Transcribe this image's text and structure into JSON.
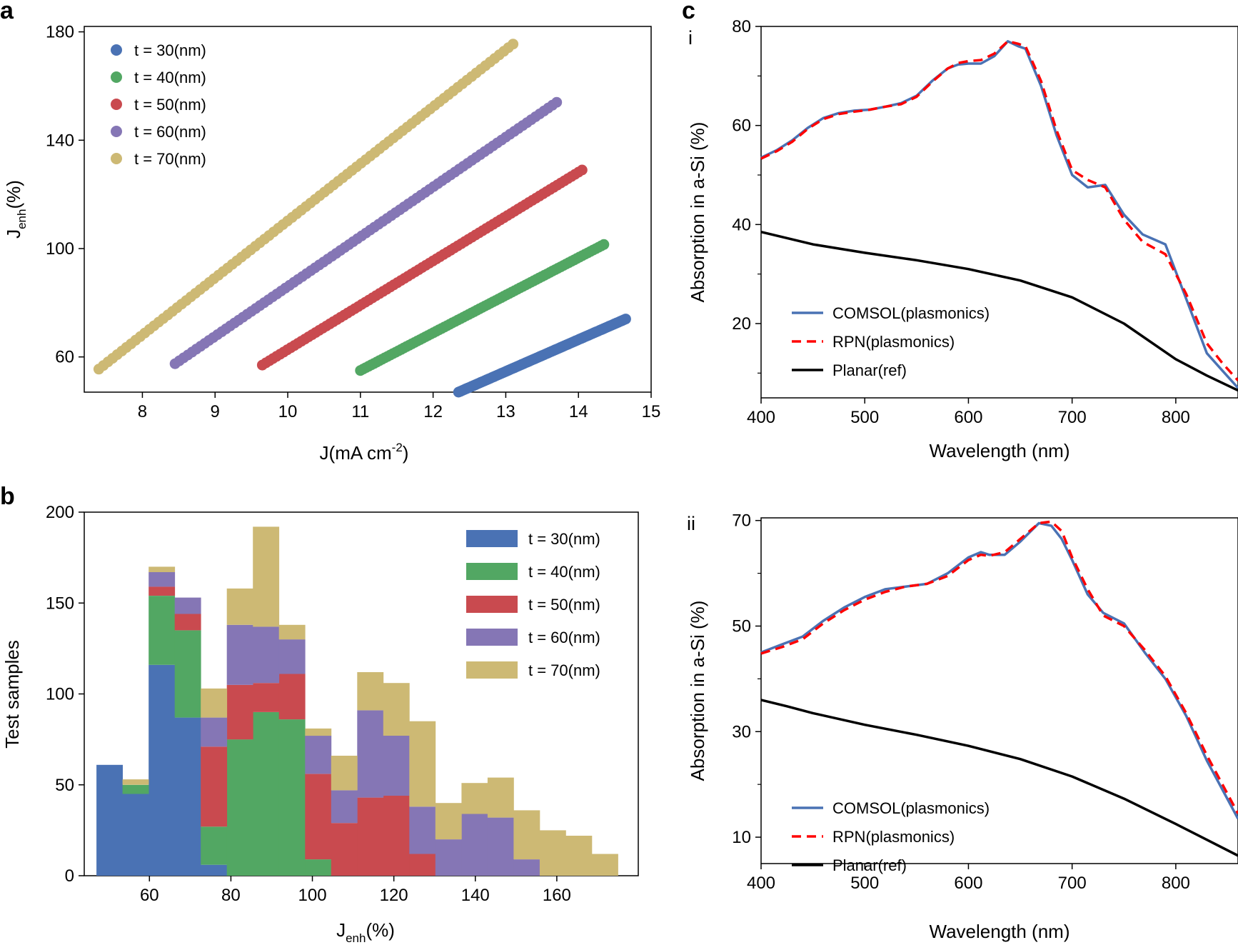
{
  "panel_labels": {
    "a": "a",
    "b": "b",
    "c": "c",
    "ci": "i",
    "cii": "ii"
  },
  "colors": {
    "t30": "#4a72b4",
    "t40": "#52a763",
    "t50": "#c94a4f",
    "t60": "#8576b5",
    "t70": "#cdb974",
    "comsol": "#4a72b4",
    "rpn": "#ff0000",
    "planar": "#000000"
  },
  "chart_data": [
    {
      "id": "a",
      "type": "scatter",
      "title": "",
      "xlabel": "J(mA cm",
      "xlabel_sup": "-2",
      "xlabel_close": ")",
      "ylabel": "J",
      "ylabel_sub": "enh",
      "ylabel_unit": "(%)",
      "xlim": [
        7.2,
        15
      ],
      "ylim": [
        47,
        182
      ],
      "xticks": [
        8,
        9,
        10,
        11,
        12,
        13,
        14,
        15
      ],
      "yticks": [
        60,
        100,
        140,
        180
      ],
      "legend_position": "top-left",
      "series": [
        {
          "name": "t = 30(nm)",
          "color_key": "t30",
          "x": [
            12.35,
            14.65
          ],
          "y": [
            47,
            74
          ]
        },
        {
          "name": "t = 40(nm)",
          "color_key": "t40",
          "x": [
            11.0,
            14.35
          ],
          "y": [
            55,
            101.5
          ]
        },
        {
          "name": "t = 50(nm)",
          "color_key": "t50",
          "x": [
            9.65,
            14.05
          ],
          "y": [
            57,
            129
          ]
        },
        {
          "name": "t = 60(nm)",
          "color_key": "t60",
          "x": [
            8.45,
            13.7
          ],
          "y": [
            57.5,
            154
          ]
        },
        {
          "name": "t = 70(nm)",
          "color_key": "t70",
          "x": [
            7.4,
            13.1
          ],
          "y": [
            55.5,
            175.5
          ]
        }
      ]
    },
    {
      "id": "b",
      "type": "bar",
      "stacked": true,
      "xlabel": "J",
      "xlabel_sub": "enh",
      "xlabel_unit": "(%)",
      "ylabel": "Test samples",
      "xlim": [
        44,
        180
      ],
      "ylim": [
        0,
        200
      ],
      "xticks": [
        60,
        80,
        100,
        120,
        140,
        160
      ],
      "yticks": [
        0,
        50,
        100,
        150,
        200
      ],
      "legend_position": "top-right",
      "bin_edges": [
        47,
        53.4,
        59.8,
        66.2,
        72.6,
        79,
        85.4,
        91.8,
        98.2,
        104.6,
        111,
        117.4,
        123.8,
        130.2,
        136.6,
        143,
        149.4,
        155.8,
        162.2,
        168.6,
        175
      ],
      "series": [
        {
          "name": "t = 30(nm)",
          "color_key": "t30",
          "values": [
            61,
            45,
            116,
            87,
            6,
            0,
            0,
            0,
            0,
            0,
            0,
            0,
            0,
            0,
            0,
            0,
            0,
            0,
            0,
            0
          ]
        },
        {
          "name": "t = 40(nm)",
          "color_key": "t40",
          "values": [
            0,
            5,
            38,
            48,
            21,
            75,
            90,
            86,
            9,
            0,
            0,
            0,
            0,
            0,
            0,
            0,
            0,
            0,
            0,
            0
          ]
        },
        {
          "name": "t = 50(nm)",
          "color_key": "t50",
          "values": [
            0,
            0,
            5,
            9,
            44,
            30,
            16,
            25,
            47,
            29,
            43,
            44,
            12,
            0,
            0,
            0,
            0,
            0,
            0,
            0
          ]
        },
        {
          "name": "t = 60(nm)",
          "color_key": "t60",
          "values": [
            0,
            0,
            8,
            9,
            16,
            33,
            31,
            19,
            21,
            18,
            48,
            33,
            26,
            20,
            34,
            32,
            9,
            0,
            0,
            0
          ]
        },
        {
          "name": "t = 70(nm)",
          "color_key": "t70",
          "values": [
            0,
            3,
            3,
            0,
            16,
            20,
            55,
            8,
            4,
            19,
            21,
            29,
            47,
            20,
            17,
            22,
            27,
            25,
            22,
            12
          ]
        }
      ]
    },
    {
      "id": "ci",
      "type": "line",
      "xlabel": "Wavelength (nm)",
      "ylabel": "Absorption in a-Si (%)",
      "xlim": [
        400,
        860
      ],
      "ylim": [
        5,
        80
      ],
      "xticks": [
        400,
        500,
        600,
        700,
        800
      ],
      "yticks": [
        20,
        40,
        60,
        80
      ],
      "legend_position": "bottom-left",
      "series": [
        {
          "name": "COMSOL(plasmonics)",
          "color_key": "comsol",
          "dash": "solid",
          "x": [
            400,
            415,
            430,
            445,
            460,
            475,
            490,
            505,
            520,
            535,
            550,
            565,
            580,
            590,
            600,
            612,
            625,
            638,
            648,
            655,
            670,
            685,
            700,
            715,
            732,
            750,
            768,
            790,
            810,
            830,
            845,
            860
          ],
          "y": [
            53.5,
            55,
            57,
            59.5,
            61.5,
            62.5,
            63,
            63.2,
            63.8,
            64.5,
            66,
            69,
            71.5,
            72.3,
            72.5,
            72.5,
            74,
            77,
            76,
            75.5,
            68,
            58,
            50,
            47.5,
            48,
            42,
            38,
            36,
            25,
            14,
            10.5,
            7
          ]
        },
        {
          "name": "RPN(plasmonics)",
          "color_key": "rpn",
          "dash": "dashed",
          "x": [
            400,
            415,
            430,
            445,
            460,
            475,
            490,
            505,
            520,
            535,
            550,
            565,
            580,
            590,
            600,
            612,
            625,
            638,
            648,
            655,
            670,
            685,
            700,
            715,
            732,
            750,
            768,
            790,
            810,
            830,
            845,
            860
          ],
          "y": [
            53.3,
            54.8,
            56.7,
            59.3,
            61.3,
            62.3,
            62.8,
            63.2,
            63.8,
            64.3,
            65.8,
            68.8,
            71.5,
            72.6,
            73,
            73.2,
            74.5,
            77,
            76.5,
            76,
            69,
            59,
            51,
            49,
            47.5,
            41,
            36.5,
            34,
            26,
            16,
            12,
            8.5
          ]
        },
        {
          "name": "Planar(ref)",
          "color_key": "planar",
          "dash": "solid",
          "x": [
            400,
            450,
            500,
            550,
            600,
            650,
            700,
            750,
            800,
            830,
            860
          ],
          "y": [
            38.5,
            36,
            34.3,
            32.8,
            31,
            28.7,
            25.3,
            20,
            12.8,
            9.5,
            6.5
          ]
        }
      ]
    },
    {
      "id": "cii",
      "type": "line",
      "xlabel": "Wavelength (nm)",
      "ylabel": "Absorption in a-Si (%)",
      "xlim": [
        400,
        860
      ],
      "ylim": [
        5,
        70.5
      ],
      "xticks": [
        400,
        500,
        600,
        700,
        800
      ],
      "yticks": [
        10,
        30,
        50,
        70
      ],
      "legend_position": "bottom-left",
      "series": [
        {
          "name": "COMSOL(plasmonics)",
          "color_key": "comsol",
          "dash": "solid",
          "x": [
            400,
            420,
            440,
            460,
            480,
            500,
            520,
            540,
            560,
            580,
            600,
            612,
            620,
            635,
            650,
            668,
            680,
            690,
            700,
            715,
            730,
            750,
            770,
            790,
            810,
            830,
            845,
            860
          ],
          "y": [
            45,
            46.5,
            48,
            51,
            53.5,
            55.5,
            57,
            57.5,
            58,
            60,
            63,
            64,
            63.5,
            63.5,
            66,
            69.5,
            69,
            66.5,
            62.5,
            56,
            52.5,
            50.5,
            45,
            40,
            33,
            24.5,
            19,
            13.5
          ]
        },
        {
          "name": "RPN(plasmonics)",
          "color_key": "rpn",
          "dash": "dashed",
          "x": [
            400,
            420,
            440,
            460,
            480,
            500,
            520,
            540,
            560,
            580,
            600,
            612,
            620,
            635,
            650,
            668,
            680,
            690,
            700,
            715,
            730,
            750,
            770,
            790,
            810,
            830,
            845,
            860
          ],
          "y": [
            44.8,
            46,
            47.5,
            50.5,
            53,
            55,
            56.5,
            57.5,
            58,
            59.5,
            62.5,
            63.5,
            63.3,
            64,
            66.5,
            69.5,
            69.8,
            68,
            63,
            57,
            52,
            50,
            45.5,
            40.5,
            33.5,
            25.5,
            20,
            14.5
          ]
        },
        {
          "name": "Planar(ref)",
          "color_key": "planar",
          "dash": "solid",
          "x": [
            400,
            425,
            450,
            500,
            550,
            600,
            650,
            700,
            750,
            800,
            830,
            860
          ],
          "y": [
            36,
            34.8,
            33.5,
            31.3,
            29.4,
            27.3,
            24.8,
            21.5,
            17.3,
            12.5,
            9.5,
            6.5
          ]
        }
      ]
    }
  ]
}
